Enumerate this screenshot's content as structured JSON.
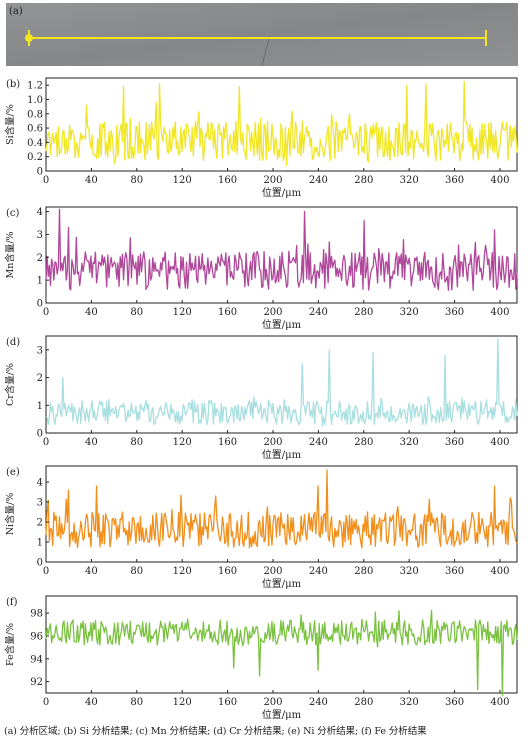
{
  "panel_a": {
    "label": "(a)",
    "colors": {
      "background": "#8a8c8d",
      "scanline": "#f2e51e"
    }
  },
  "chart_data": [
    {
      "type": "line",
      "label": "(b)",
      "ylabel": "Si含量/%",
      "xlabel": "位置/μm",
      "xlim": [
        0,
        415
      ],
      "ylim": [
        0,
        1.3
      ],
      "xticks": [
        "0",
        "40",
        "80",
        "120",
        "160",
        "200",
        "240",
        "280",
        "320",
        "360",
        "400"
      ],
      "yticks": [
        "0",
        "0.2",
        "0.4",
        "0.6",
        "0.8",
        "1.0",
        "1.2"
      ],
      "color": "#f0e626",
      "series_stats": {
        "baseline": 0.42,
        "amplitude": 0.28,
        "min": 0.0,
        "max": 1.25
      },
      "peaks": [
        [
          68,
          1.18
        ],
        [
          100,
          1.22
        ],
        [
          170,
          1.18
        ],
        [
          318,
          1.2
        ],
        [
          335,
          1.22
        ],
        [
          368,
          1.25
        ]
      ]
    },
    {
      "type": "line",
      "label": "(c)",
      "ylabel": "Mn含量/%",
      "xlabel": "位置/μm",
      "xlim": [
        0,
        415
      ],
      "ylim": [
        0,
        4.2
      ],
      "xticks": [
        "0",
        "40",
        "80",
        "120",
        "160",
        "200",
        "240",
        "280",
        "320",
        "360",
        "400"
      ],
      "yticks": [
        "0",
        "1",
        "2",
        "3",
        "4"
      ],
      "color": "#b0479a",
      "series_stats": {
        "baseline": 1.4,
        "amplitude": 0.85,
        "min": 0.0,
        "max": 4.1
      },
      "peaks": [
        [
          12,
          4.1
        ],
        [
          20,
          3.3
        ],
        [
          228,
          4.0
        ],
        [
          280,
          3.6
        ],
        [
          395,
          3.2
        ]
      ]
    },
    {
      "type": "line",
      "label": "(d)",
      "ylabel": "Cr含量/%",
      "xlabel": "位置/μm",
      "xlim": [
        0,
        415
      ],
      "ylim": [
        0,
        3.5
      ],
      "xticks": [
        "0",
        "40",
        "80",
        "120",
        "160",
        "200",
        "240",
        "280",
        "320",
        "360",
        "400"
      ],
      "yticks": [
        "0",
        "1",
        "2",
        "3"
      ],
      "color": "#a9dfe0",
      "series_stats": {
        "baseline": 0.75,
        "amplitude": 0.45,
        "min": 0.0,
        "max": 3.4
      },
      "peaks": [
        [
          250,
          3.0
        ],
        [
          288,
          2.9
        ],
        [
          226,
          2.5
        ],
        [
          352,
          2.8
        ],
        [
          398,
          3.4
        ],
        [
          15,
          2.0
        ]
      ]
    },
    {
      "type": "line",
      "label": "(e)",
      "ylabel": "Ni含量/%",
      "xlabel": "位置/μm",
      "xlim": [
        0,
        415
      ],
      "ylim": [
        0,
        4.8
      ],
      "xticks": [
        "0",
        "40",
        "80",
        "120",
        "160",
        "200",
        "240",
        "280",
        "320",
        "360",
        "400"
      ],
      "yticks": [
        "0",
        "1",
        "2",
        "3",
        "4"
      ],
      "color": "#f28f1c",
      "series_stats": {
        "baseline": 1.6,
        "amplitude": 0.9,
        "min": 0.0,
        "max": 4.6
      },
      "peaks": [
        [
          248,
          4.6
        ],
        [
          45,
          3.8
        ],
        [
          240,
          3.8
        ],
        [
          395,
          3.8
        ],
        [
          150,
          3.3
        ],
        [
          20,
          3.6
        ]
      ]
    },
    {
      "type": "line",
      "label": "(f)",
      "ylabel": "Fe含量/%",
      "xlabel": "位置/μm",
      "xlim": [
        0,
        415
      ],
      "ylim": [
        91,
        99.5
      ],
      "xticks": [
        "0",
        "40",
        "80",
        "120",
        "160",
        "200",
        "240",
        "280",
        "320",
        "360",
        "400"
      ],
      "yticks": [
        "92",
        "94",
        "96",
        "98"
      ],
      "color": "#7cc242",
      "series_stats": {
        "baseline": 96.3,
        "amplitude": 1.1,
        "min": 90.8,
        "max": 99.3
      },
      "dips": [
        [
          380,
          91.3
        ],
        [
          402,
          90.8
        ],
        [
          240,
          93.0
        ],
        [
          188,
          92.5
        ],
        [
          165,
          93.2
        ]
      ]
    }
  ],
  "caption": "(a) 分析区域; (b) Si 分析结果; (c) Mn 分析结果; (d) Cr 分析结果; (e) Ni 分析结果; (f) Fe 分析结果"
}
